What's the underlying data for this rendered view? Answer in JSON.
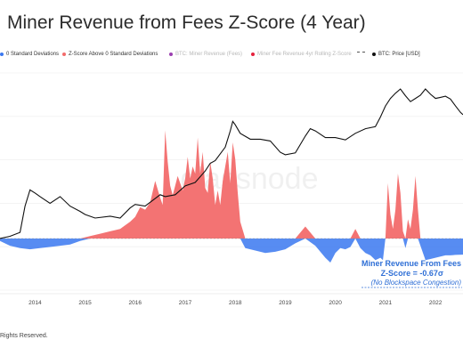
{
  "chart_data": {
    "type": "area",
    "title": "Miner Revenue from Fees Z-Score (4 Year)",
    "legend_position": "top",
    "legend": [
      {
        "label": "0 Standard Deviations",
        "color": "#3a78f0",
        "style": "dot"
      },
      {
        "label": "Z-Score Above 0 Standard Deviations",
        "color": "#f26b6b",
        "style": "dot"
      },
      {
        "label": "BTC: Miner Revenue (Fees)",
        "color": "#9b3fb0",
        "style": "dot",
        "faded": true
      },
      {
        "label": "Miner Fee Revenue 4yr Rolling Z-Score",
        "color": "#e5213c",
        "style": "dot",
        "faded": true
      },
      {
        "label": "",
        "color": "#555555",
        "style": "dash"
      },
      {
        "label": "BTC: Price [USD]",
        "color": "#111111",
        "style": "dot"
      }
    ],
    "x_ticks": [
      "2014",
      "2015",
      "2016",
      "2017",
      "2018",
      "2019",
      "2020",
      "2021",
      "2022"
    ],
    "x_range": [
      2013.3,
      2022.55
    ],
    "y_label": "",
    "grid": true,
    "series": [
      {
        "name": "Miner Fee Revenue 4yr Rolling Z-Score",
        "x": [
          2013.3,
          2013.5,
          2013.7,
          2013.9,
          2014.1,
          2014.3,
          2014.5,
          2014.7,
          2014.9,
          2015.1,
          2015.3,
          2015.5,
          2015.7,
          2015.9,
          2016.0,
          2016.1,
          2016.2,
          2016.3,
          2016.4,
          2016.5,
          2016.55,
          2016.6,
          2016.65,
          2016.7,
          2016.75,
          2016.8,
          2016.85,
          2016.9,
          2016.95,
          2017.0,
          2017.05,
          2017.1,
          2017.15,
          2017.2,
          2017.25,
          2017.3,
          2017.35,
          2017.4,
          2017.45,
          2017.5,
          2017.55,
          2017.6,
          2017.65,
          2017.7,
          2017.75,
          2017.8,
          2017.85,
          2017.9,
          2017.95,
          2018.0,
          2018.05,
          2018.1,
          2018.2,
          2018.4,
          2018.6,
          2018.8,
          2019.0,
          2019.2,
          2019.4,
          2019.6,
          2019.8,
          2019.9,
          2020.0,
          2020.1,
          2020.2,
          2020.3,
          2020.4,
          2020.5,
          2020.6,
          2020.7,
          2020.8,
          2020.9,
          2020.95,
          2021.0,
          2021.05,
          2021.1,
          2021.15,
          2021.2,
          2021.25,
          2021.3,
          2021.35,
          2021.4,
          2021.45,
          2021.5,
          2021.55,
          2021.6,
          2021.65,
          2021.7,
          2021.8,
          2021.9,
          2022.0,
          2022.1,
          2022.2,
          2022.3,
          2022.4,
          2022.55
        ],
        "values": [
          -0.1,
          -0.3,
          -0.4,
          -0.45,
          -0.4,
          -0.35,
          -0.3,
          -0.25,
          -0.1,
          0.1,
          0.2,
          0.3,
          0.4,
          0.7,
          0.9,
          1.3,
          1.2,
          1.5,
          2.4,
          1.7,
          1.4,
          4.5,
          3.2,
          2.2,
          1.8,
          2.2,
          2.6,
          2.3,
          2.0,
          2.5,
          3.4,
          2.5,
          3.0,
          2.7,
          4.2,
          2.7,
          3.6,
          2.1,
          1.9,
          3.2,
          2.5,
          1.4,
          2.0,
          1.4,
          2.4,
          3.0,
          3.6,
          2.3,
          4.0,
          3.3,
          1.9,
          0.7,
          -0.4,
          -0.5,
          -0.6,
          -0.55,
          -0.45,
          -0.2,
          0.5,
          -0.3,
          -0.8,
          -1.0,
          -0.6,
          -0.4,
          -0.45,
          -0.35,
          0.4,
          -0.4,
          -0.6,
          -0.7,
          -0.9,
          -0.8,
          -0.9,
          0.0,
          2.3,
          1.0,
          0.4,
          1.2,
          2.7,
          1.9,
          0.3,
          -0.4,
          0.8,
          0.4,
          1.2,
          2.6,
          1.2,
          -0.3,
          -0.9,
          -0.85,
          -0.8,
          -0.75,
          -0.7,
          -0.7,
          -0.68,
          -0.67
        ]
      },
      {
        "name": "BTC: Price [USD]",
        "x": [
          2013.3,
          2013.5,
          2013.7,
          2013.8,
          2013.9,
          2014.0,
          2014.1,
          2014.3,
          2014.5,
          2014.7,
          2014.9,
          2015.0,
          2015.2,
          2015.5,
          2015.7,
          2015.9,
          2016.0,
          2016.2,
          2016.5,
          2016.6,
          2016.8,
          2017.0,
          2017.2,
          2017.4,
          2017.5,
          2017.6,
          2017.8,
          2017.9,
          2017.95,
          2018.0,
          2018.1,
          2018.3,
          2018.5,
          2018.7,
          2018.9,
          2019.0,
          2019.2,
          2019.4,
          2019.5,
          2019.6,
          2019.8,
          2020.0,
          2020.2,
          2020.4,
          2020.6,
          2020.8,
          2020.9,
          2021.0,
          2021.1,
          2021.2,
          2021.3,
          2021.4,
          2021.5,
          2021.6,
          2021.7,
          2021.8,
          2021.9,
          2022.0,
          2022.1,
          2022.2,
          2022.3,
          2022.4,
          2022.5,
          2022.55
        ],
        "values": [
          100,
          110,
          130,
          400,
          800,
          700,
          600,
          450,
          600,
          400,
          320,
          280,
          240,
          260,
          240,
          370,
          430,
          400,
          650,
          600,
          650,
          950,
          1100,
          1800,
          2500,
          2800,
          5000,
          10000,
          15000,
          13000,
          9000,
          7000,
          7000,
          6500,
          4000,
          3600,
          3900,
          8000,
          11000,
          10000,
          7500,
          7500,
          6800,
          9000,
          11000,
          12000,
          18000,
          29000,
          40000,
          50000,
          60000,
          45000,
          35000,
          40000,
          46000,
          60000,
          48000,
          40000,
          42000,
          44000,
          39000,
          29000,
          22000,
          20000
        ]
      }
    ],
    "annotation": {
      "line1": "Miner Revenue From Fees",
      "line2": "Z-Score = -0.67σ",
      "line3": "(No Blockspace Congestion)"
    },
    "colors": {
      "positive": "#f26b6b",
      "negative": "#3a78f0",
      "price": "#111111",
      "annotation": "#2f6fd6"
    }
  },
  "footer": "Rights Reserved.",
  "watermark": "glassnode"
}
